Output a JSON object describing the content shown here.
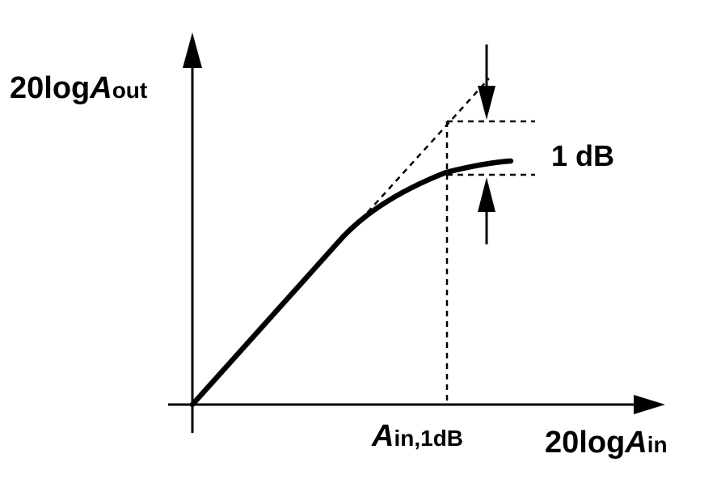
{
  "diagram": {
    "y_axis_label": {
      "prefix": "20log",
      "var": "A",
      "sub": "out"
    },
    "x_axis_label": {
      "prefix": "20log",
      "var": "A",
      "sub": "in"
    },
    "compression_point_label": {
      "var": "A",
      "sub": "in,1dB"
    },
    "compression_label": "1 dB"
  }
}
